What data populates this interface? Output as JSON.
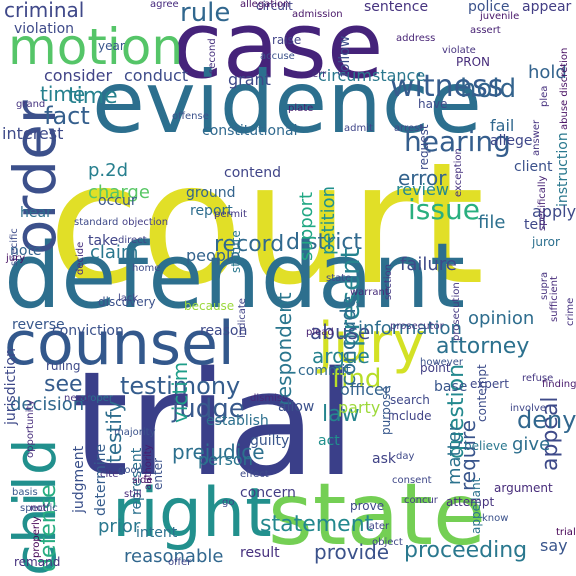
{
  "words": [
    {
      "text": "court",
      "color": "#e1df27",
      "vertical": false
    },
    {
      "text": "trial",
      "color": "#3a3f89",
      "vertical": false
    },
    {
      "text": "defendant",
      "color": "#2d6f8e",
      "vertical": false
    },
    {
      "text": "case",
      "color": "#45237a",
      "vertical": false
    },
    {
      "text": "evidence",
      "color": "#2c6f8e",
      "vertical": false
    },
    {
      "text": "state",
      "color": "#74cf54",
      "vertical": false
    },
    {
      "text": "counsel",
      "color": "#33588c",
      "vertical": false
    },
    {
      "text": "motion",
      "color": "#55c568",
      "vertical": false
    },
    {
      "text": "right",
      "color": "#22908d",
      "vertical": false
    },
    {
      "text": "jury",
      "color": "#d3e125",
      "vertical": false
    },
    {
      "text": "child",
      "color": "#21908d",
      "vertical": true
    },
    {
      "text": "order",
      "color": "#3c508b",
      "vertical": true
    },
    {
      "text": "district",
      "color": "#30698e",
      "vertical": false
    },
    {
      "text": "record",
      "color": "#30698e",
      "vertical": false
    },
    {
      "text": "testimony",
      "color": "#355d8d",
      "vertical": false
    },
    {
      "text": "witness",
      "color": "#365c8d",
      "vertical": false
    },
    {
      "text": "hearing",
      "color": "#355e8d",
      "vertical": false
    },
    {
      "text": "issue",
      "color": "#29af7f",
      "vertical": false
    },
    {
      "text": "appeal",
      "color": "#3e4a89",
      "vertical": true
    },
    {
      "text": "judge",
      "color": "#38598c",
      "vertical": false
    },
    {
      "text": "statement",
      "color": "#23888e",
      "vertical": false
    },
    {
      "text": "criminal",
      "color": "#3f4889",
      "vertical": false
    },
    {
      "text": "rule",
      "color": "#31678e",
      "vertical": false
    },
    {
      "text": "fact",
      "color": "#355f8d",
      "vertical": false
    },
    {
      "text": "time",
      "color": "#26818e",
      "vertical": false
    },
    {
      "text": "hold",
      "color": "#33638d",
      "vertical": false
    },
    {
      "text": "find",
      "color": "#b8de29",
      "vertical": false
    },
    {
      "text": "see",
      "color": "#365c8d",
      "vertical": false
    },
    {
      "text": "deny",
      "color": "#31678e",
      "vertical": false
    },
    {
      "text": "attorney",
      "color": "#2c718e",
      "vertical": false
    },
    {
      "text": "defense",
      "color": "#27ad81",
      "vertical": true
    },
    {
      "text": "testify",
      "color": "#2e6e8e",
      "vertical": true
    },
    {
      "text": "present",
      "color": "#26838f",
      "vertical": true
    },
    {
      "text": "question",
      "color": "#23898e",
      "vertical": true
    },
    {
      "text": "proceeding",
      "color": "#2a788e",
      "vertical": false
    },
    {
      "text": "provide",
      "color": "#3b528b",
      "vertical": false
    },
    {
      "text": "require",
      "color": "#39558c",
      "vertical": true
    },
    {
      "text": "law",
      "color": "#25858e",
      "vertical": false
    },
    {
      "text": "p.2d",
      "color": "#277f8e",
      "vertical": false
    },
    {
      "text": "error",
      "color": "#33638d",
      "vertical": false
    },
    {
      "text": "charge",
      "color": "#58c765",
      "vertical": false
    },
    {
      "text": "prejudice",
      "color": "#2d708e",
      "vertical": false
    },
    {
      "text": "abuse",
      "color": "#3e4989",
      "vertical": false
    },
    {
      "text": "argue",
      "color": "#26828e",
      "vertical": false
    },
    {
      "text": "information",
      "color": "#2e6e8e",
      "vertical": false
    },
    {
      "text": "opinion",
      "color": "#2e6d8e",
      "vertical": false
    },
    {
      "text": "decision",
      "color": "#31688e",
      "vertical": false
    },
    {
      "text": "claim",
      "color": "#2a778e",
      "vertical": false
    },
    {
      "text": "people",
      "color": "#33638d",
      "vertical": false
    },
    {
      "text": "failure",
      "color": "#3e4a89",
      "vertical": false
    },
    {
      "text": "file",
      "color": "#2d708e",
      "vertical": false
    },
    {
      "text": "review",
      "color": "#23898e",
      "vertical": false
    },
    {
      "text": "conclude",
      "color": "#2e6e8e",
      "vertical": true
    },
    {
      "text": "petition",
      "color": "#21918c",
      "vertical": true
    },
    {
      "text": "respondent",
      "color": "#2a768e",
      "vertical": true
    },
    {
      "text": "support",
      "color": "#22a884",
      "vertical": true
    },
    {
      "text": "victim",
      "color": "#1f9e89",
      "vertical": true
    },
    {
      "text": "consider",
      "color": "#414487",
      "vertical": false
    },
    {
      "text": "conduct",
      "color": "#3e4c8a",
      "vertical": false
    },
    {
      "text": "grant",
      "color": "#3e4989",
      "vertical": false
    },
    {
      "text": "circumstance",
      "color": "#2a788e",
      "vertical": false
    },
    {
      "text": "note",
      "color": "#33638d",
      "vertical": false
    },
    {
      "text": "reverse",
      "color": "#38588c",
      "vertical": false
    },
    {
      "text": "conviction",
      "color": "#3b528b",
      "vertical": false
    },
    {
      "text": "reason",
      "color": "#3e4a89",
      "vertical": false
    },
    {
      "text": "commit",
      "color": "#30698e",
      "vertical": false
    },
    {
      "text": "officer",
      "color": "#33638d",
      "vertical": false
    },
    {
      "text": "party",
      "color": "#9dd93b",
      "vertical": false
    },
    {
      "text": "base",
      "color": "#39568c",
      "vertical": false
    },
    {
      "text": "allow",
      "color": "#3b518b",
      "vertical": false
    },
    {
      "text": "establish",
      "color": "#2d708e",
      "vertical": false
    },
    {
      "text": "guilty",
      "color": "#39558c",
      "vertical": false
    },
    {
      "text": "act",
      "color": "#21908d",
      "vertical": false
    },
    {
      "text": "person",
      "color": "#2b748e",
      "vertical": false
    },
    {
      "text": "concern",
      "color": "#433d84",
      "vertical": false
    },
    {
      "text": "prior",
      "color": "#2a788e",
      "vertical": false
    },
    {
      "text": "intent",
      "color": "#2d708e",
      "vertical": false
    },
    {
      "text": "reasonable",
      "color": "#31678e",
      "vertical": false
    },
    {
      "text": "result",
      "color": "#46307e",
      "vertical": false
    },
    {
      "text": "give",
      "color": "#2e6f8e",
      "vertical": false
    },
    {
      "text": "matter",
      "color": "#2c738e",
      "vertical": true
    },
    {
      "text": "say",
      "color": "#39558c",
      "vertical": false
    },
    {
      "text": "hold",
      "color": "#33638d",
      "vertical": false
    },
    {
      "text": "time",
      "color": "#26818e",
      "vertical": false
    },
    {
      "text": "instruction",
      "color": "#2a788e",
      "vertical": true
    },
    {
      "text": "fail",
      "color": "#31688e",
      "vertical": false
    },
    {
      "text": "allege",
      "color": "#3f4889",
      "vertical": false
    },
    {
      "text": "police",
      "color": "#3b528b",
      "vertical": false
    },
    {
      "text": "appear",
      "color": "#433e85",
      "vertical": false
    },
    {
      "text": "sentence",
      "color": "#46337f",
      "vertical": false
    },
    {
      "text": "circuit",
      "color": "#414487",
      "vertical": false
    },
    {
      "text": "violation",
      "color": "#3e4a89",
      "vertical": false
    },
    {
      "text": "agree",
      "color": "#45287c",
      "vertical": false
    },
    {
      "text": "allegation",
      "color": "#471164",
      "vertical": false
    },
    {
      "text": "year",
      "color": "#39568c",
      "vertical": false
    },
    {
      "text": "follow",
      "color": "#3c4f8a",
      "vertical": true
    },
    {
      "text": "second",
      "color": "#46317e",
      "vertical": true
    },
    {
      "text": "raise",
      "color": "#414487",
      "vertical": false
    },
    {
      "text": "accuse",
      "color": "#3b528b",
      "vertical": false
    },
    {
      "text": "have",
      "color": "#3e4a89",
      "vertical": false
    },
    {
      "text": "request",
      "color": "#3e4c8a",
      "vertical": true
    },
    {
      "text": "arrest",
      "color": "#3e4989",
      "vertical": false
    },
    {
      "text": "admit",
      "color": "#404588",
      "vertical": false
    },
    {
      "text": "PRON",
      "color": "#472d7b",
      "vertical": false
    },
    {
      "text": "interest",
      "color": "#3e4a89",
      "vertical": false
    },
    {
      "text": "constitutional",
      "color": "#30698e",
      "vertical": false
    },
    {
      "text": "offense",
      "color": "#3b528b",
      "vertical": false
    },
    {
      "text": "occur",
      "color": "#39568c",
      "vertical": false
    },
    {
      "text": "contend",
      "color": "#404588",
      "vertical": false
    },
    {
      "text": "ground",
      "color": "#33638d",
      "vertical": false
    },
    {
      "text": "report",
      "color": "#2e6d8e",
      "vertical": false
    },
    {
      "text": "take",
      "color": "#404588",
      "vertical": false
    },
    {
      "text": "client",
      "color": "#3b518b",
      "vertical": false
    },
    {
      "text": "tell",
      "color": "#3f4889",
      "vertical": false
    },
    {
      "text": "juror",
      "color": "#2d708e",
      "vertical": false
    },
    {
      "text": "point",
      "color": "#423f85",
      "vertical": false
    },
    {
      "text": "contempt",
      "color": "#3d4d8a",
      "vertical": true
    },
    {
      "text": "indicate",
      "color": "#414487",
      "vertical": true
    },
    {
      "text": "discovery",
      "color": "#3b518b",
      "vertical": false
    },
    {
      "text": "because",
      "color": "#9bd93c",
      "vertical": false
    },
    {
      "text": "statute",
      "color": "#2a788e",
      "vertical": true
    },
    {
      "text": "hear",
      "color": "#2e6e8e",
      "vertical": false
    },
    {
      "text": "jurisdiction",
      "color": "#3e4989",
      "vertical": true
    },
    {
      "text": "ruling",
      "color": "#3e4a89",
      "vertical": false
    },
    {
      "text": "judgment",
      "color": "#3b518b",
      "vertical": true
    },
    {
      "text": "determine",
      "color": "#365d8d",
      "vertical": true
    },
    {
      "text": "represent",
      "color": "#2c718e",
      "vertical": true
    },
    {
      "text": "enter",
      "color": "#3b528b",
      "vertical": true
    },
    {
      "text": "purpose",
      "color": "#38588c",
      "vertical": true
    },
    {
      "text": "include",
      "color": "#414487",
      "vertical": false
    },
    {
      "text": "search",
      "color": "#3f4889",
      "vertical": false
    },
    {
      "text": "believe",
      "color": "#2a778e",
      "vertical": false
    },
    {
      "text": "appellant",
      "color": "#2c738e",
      "vertical": true
    },
    {
      "text": "know",
      "color": "#3b528b",
      "vertical": false
    },
    {
      "text": "ask",
      "color": "#414487",
      "vertical": false
    },
    {
      "text": "argument",
      "color": "#472c7a",
      "vertical": false
    },
    {
      "text": "attempt",
      "color": "#46327e",
      "vertical": false
    },
    {
      "text": "prove",
      "color": "#3e4989",
      "vertical": false
    },
    {
      "text": "concur",
      "color": "#433e85",
      "vertical": false
    },
    {
      "text": "later",
      "color": "#404588",
      "vertical": false
    },
    {
      "text": "object",
      "color": "#3f4788",
      "vertical": false
    },
    {
      "text": "go",
      "color": "#404688",
      "vertical": false
    },
    {
      "text": "offer",
      "color": "#404588",
      "vertical": false
    },
    {
      "text": "remand",
      "color": "#46337f",
      "vertical": false
    },
    {
      "text": "consent",
      "color": "#3f4788",
      "vertical": false
    },
    {
      "text": "effect",
      "color": "#3e4a89",
      "vertical": false
    },
    {
      "text": "majority",
      "color": "#3b528b",
      "vertical": false
    },
    {
      "text": "good",
      "color": "#3b528b",
      "vertical": false
    },
    {
      "text": "basis",
      "color": "#38588c",
      "vertical": false
    },
    {
      "text": "specific",
      "color": "#3b528b",
      "vertical": false
    },
    {
      "text": "proper",
      "color": "#2c718e",
      "vertical": false
    },
    {
      "text": "expert",
      "color": "#3f4889",
      "vertical": false
    },
    {
      "text": "involve",
      "color": "#3f4788",
      "vertical": false
    },
    {
      "text": "however",
      "color": "#3b528b",
      "vertical": false
    },
    {
      "text": "day",
      "color": "#3e4989",
      "vertical": false
    },
    {
      "text": "apply",
      "color": "#3e4a89",
      "vertical": false
    },
    {
      "text": "supra",
      "color": "#46327e",
      "vertical": true
    },
    {
      "text": "crime",
      "color": "#46337f",
      "vertical": true
    },
    {
      "text": "sufficient",
      "color": "#472c7a",
      "vertical": true
    },
    {
      "text": "plea",
      "color": "#46307e",
      "vertical": true
    },
    {
      "text": "answer",
      "color": "#463480",
      "vertical": true
    },
    {
      "text": "exception",
      "color": "#46337f",
      "vertical": true
    },
    {
      "text": "objection",
      "color": "#433e85",
      "vertical": false
    },
    {
      "text": "direct",
      "color": "#414487",
      "vertical": false
    },
    {
      "text": "lack",
      "color": "#404588",
      "vertical": false
    },
    {
      "text": "permit",
      "color": "#443983",
      "vertical": false
    },
    {
      "text": "plead",
      "color": "#482374",
      "vertical": false
    },
    {
      "text": "home",
      "color": "#3e4c8a",
      "vertical": false
    },
    {
      "text": "state",
      "color": "#3e4a89",
      "vertical": false
    },
    {
      "text": "standard",
      "color": "#3e4a89",
      "vertical": false
    },
    {
      "text": "section",
      "color": "#443a83",
      "vertical": true
    },
    {
      "text": "specific",
      "color": "#3e4c8a",
      "vertical": true
    },
    {
      "text": "decide",
      "color": "#46307e",
      "vertical": true
    },
    {
      "text": "prosecutor",
      "color": "#453882",
      "vertical": false
    },
    {
      "text": "warrant",
      "color": "#472c7a",
      "vertical": false
    },
    {
      "text": "dismiss",
      "color": "#482878",
      "vertical": false
    },
    {
      "text": "authority",
      "color": "#481c6e",
      "vertical": true
    },
    {
      "text": "properly",
      "color": "#440154",
      "vertical": true
    },
    {
      "text": "need",
      "color": "#463480",
      "vertical": false
    },
    {
      "text": "not",
      "color": "#482979",
      "vertical": false
    },
    {
      "text": "cite",
      "color": "#46327e",
      "vertical": false
    },
    {
      "text": "side",
      "color": "#481467",
      "vertical": false
    },
    {
      "text": "still",
      "color": "#472a7a",
      "vertical": false
    },
    {
      "text": "jury",
      "color": "#471063",
      "vertical": false
    },
    {
      "text": "refuse",
      "color": "#453781",
      "vertical": false
    },
    {
      "text": "finding",
      "color": "#481a6c",
      "vertical": false
    },
    {
      "text": "opportunity",
      "color": "#472e7c",
      "vertical": true
    },
    {
      "text": "prosecution",
      "color": "#453882",
      "vertical": true
    },
    {
      "text": "specifically",
      "color": "#482475",
      "vertical": true
    },
    {
      "text": "abuse discretion",
      "color": "#471063",
      "vertical": true
    },
    {
      "text": "assert",
      "color": "#482374",
      "vertical": false
    },
    {
      "text": "address",
      "color": "#482576",
      "vertical": false
    },
    {
      "text": "violate",
      "color": "#46337f",
      "vertical": false
    },
    {
      "text": "grand",
      "color": "#463480",
      "vertical": false
    },
    {
      "text": "juvenile",
      "color": "#481769",
      "vertical": false
    },
    {
      "text": "admission",
      "color": "#481668",
      "vertical": false
    },
    {
      "text": "plate",
      "color": "#482071",
      "vertical": false
    },
    {
      "text": "err",
      "color": "#46307e",
      "vertical": false
    },
    {
      "text": "trial",
      "color": "#440154",
      "vertical": false
    }
  ]
}
